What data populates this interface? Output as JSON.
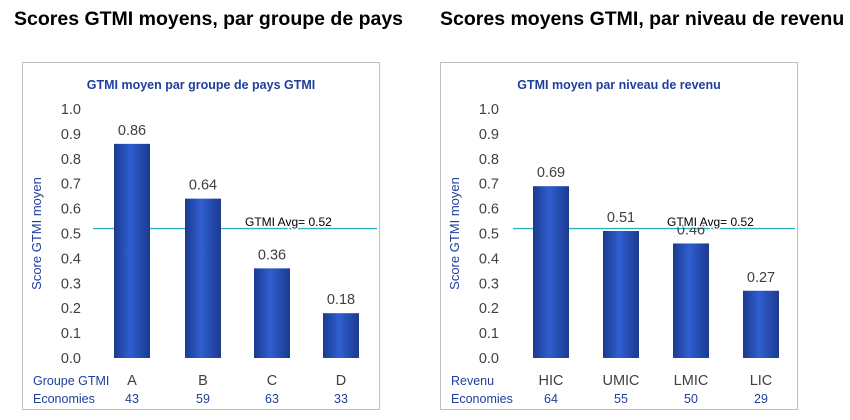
{
  "titles": {
    "left": "Scores GTMI moyens, par groupe de pays",
    "right": "Scores moyens GTMI, par niveau de revenu"
  },
  "colors": {
    "bar": "#2f5fd0",
    "bar_dark": "#1b3a8f",
    "avg_line": "#2bb3c0",
    "chart_title": "#1f3f9e",
    "axis_text": "#404040",
    "row_label": "#1f3f9e"
  },
  "chart_data": [
    {
      "type": "bar",
      "title": "GTMI moyen par groupe de pays GTMI",
      "ylabel": "Score GTMI moyen",
      "categories": [
        "A",
        "B",
        "C",
        "D"
      ],
      "values": [
        0.86,
        0.64,
        0.36,
        0.18
      ],
      "value_labels": [
        "0.86",
        "0.64",
        "0.36",
        "0.18"
      ],
      "ylim": [
        0,
        1.0
      ],
      "yticks": [
        "0.0",
        "0.1",
        "0.2",
        "0.3",
        "0.4",
        "0.5",
        "0.6",
        "0.7",
        "0.8",
        "0.9",
        "1.0"
      ],
      "average": 0.52,
      "average_label": "GTMI Avg= 0.52",
      "category_row_label": "Groupe GTMI",
      "count_row_label": "Economies",
      "counts": [
        "43",
        "59",
        "63",
        "33"
      ],
      "grid": false
    },
    {
      "type": "bar",
      "title": "GTMI moyen par niveau de revenu",
      "ylabel": "Score GTMI moyen",
      "categories": [
        "HIC",
        "UMIC",
        "LMIC",
        "LIC"
      ],
      "values": [
        0.69,
        0.51,
        0.46,
        0.27
      ],
      "value_labels": [
        "0.69",
        "0.51",
        "0.46",
        "0.27"
      ],
      "ylim": [
        0,
        1.0
      ],
      "yticks": [
        "0.0",
        "0.1",
        "0.2",
        "0.3",
        "0.4",
        "0.5",
        "0.6",
        "0.7",
        "0.8",
        "0.9",
        "1.0"
      ],
      "average": 0.52,
      "average_label": "GTMI Avg= 0.52",
      "category_row_label": "Revenu",
      "count_row_label": "Economies",
      "counts": [
        "64",
        "55",
        "50",
        "29"
      ],
      "grid": false
    }
  ]
}
